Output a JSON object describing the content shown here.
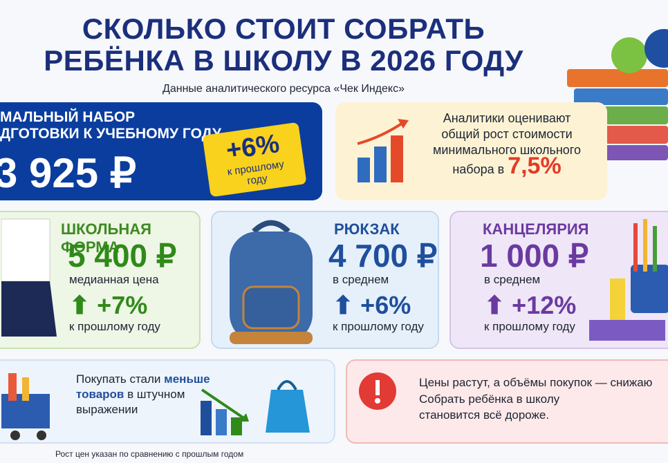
{
  "header": {
    "title_lines": [
      "СКОЛЬКО СТОИТ СОБРАТЬ",
      "РЕБЁНКА В ШКОЛУ В 2026 ГОДУ"
    ],
    "subtitle": "Данные аналитического ресурса «Чек Индекс»"
  },
  "main_card": {
    "label_lines": [
      "МАЛЬНЫЙ НАБОР",
      "ДГОТОВКИ К УЧЕБНОМУ ГОДУ"
    ],
    "price": "3 925 ₽",
    "tag_change": "+6%",
    "tag_note": "к прошлому году"
  },
  "analytics_card": {
    "text": "Аналитики оценивают общий рост стоимости минимального школьного набора в",
    "value": "7,5%"
  },
  "cards": [
    {
      "title": "ШКОЛЬНАЯ ФОРМА",
      "price": "5 400 ₽",
      "price_note": "медианная цена",
      "change": "+7%",
      "change_note": "к прошлому году"
    },
    {
      "title": "РЮКЗАК",
      "price": "4 700 ₽",
      "price_note": "в среднем",
      "change": "+6%",
      "change_note": "к прошлому году"
    },
    {
      "title": "КАНЦЕЛЯРИЯ",
      "price": "1 000 ₽",
      "price_note": "в среднем",
      "change": "+12%",
      "change_note": "к прошлому году"
    }
  ],
  "bottom_left": {
    "text_before": "Покупать стали",
    "highlight": "меньше товаров",
    "text_after": "в штучном выражении"
  },
  "bottom_right": {
    "lines": [
      "Цены растут, а объёмы покупок — снижаю",
      "Собрать ребёнка в школу становится всё дороже."
    ]
  },
  "footnote": "Рост цен указан по сравнению с прошлым годом"
}
